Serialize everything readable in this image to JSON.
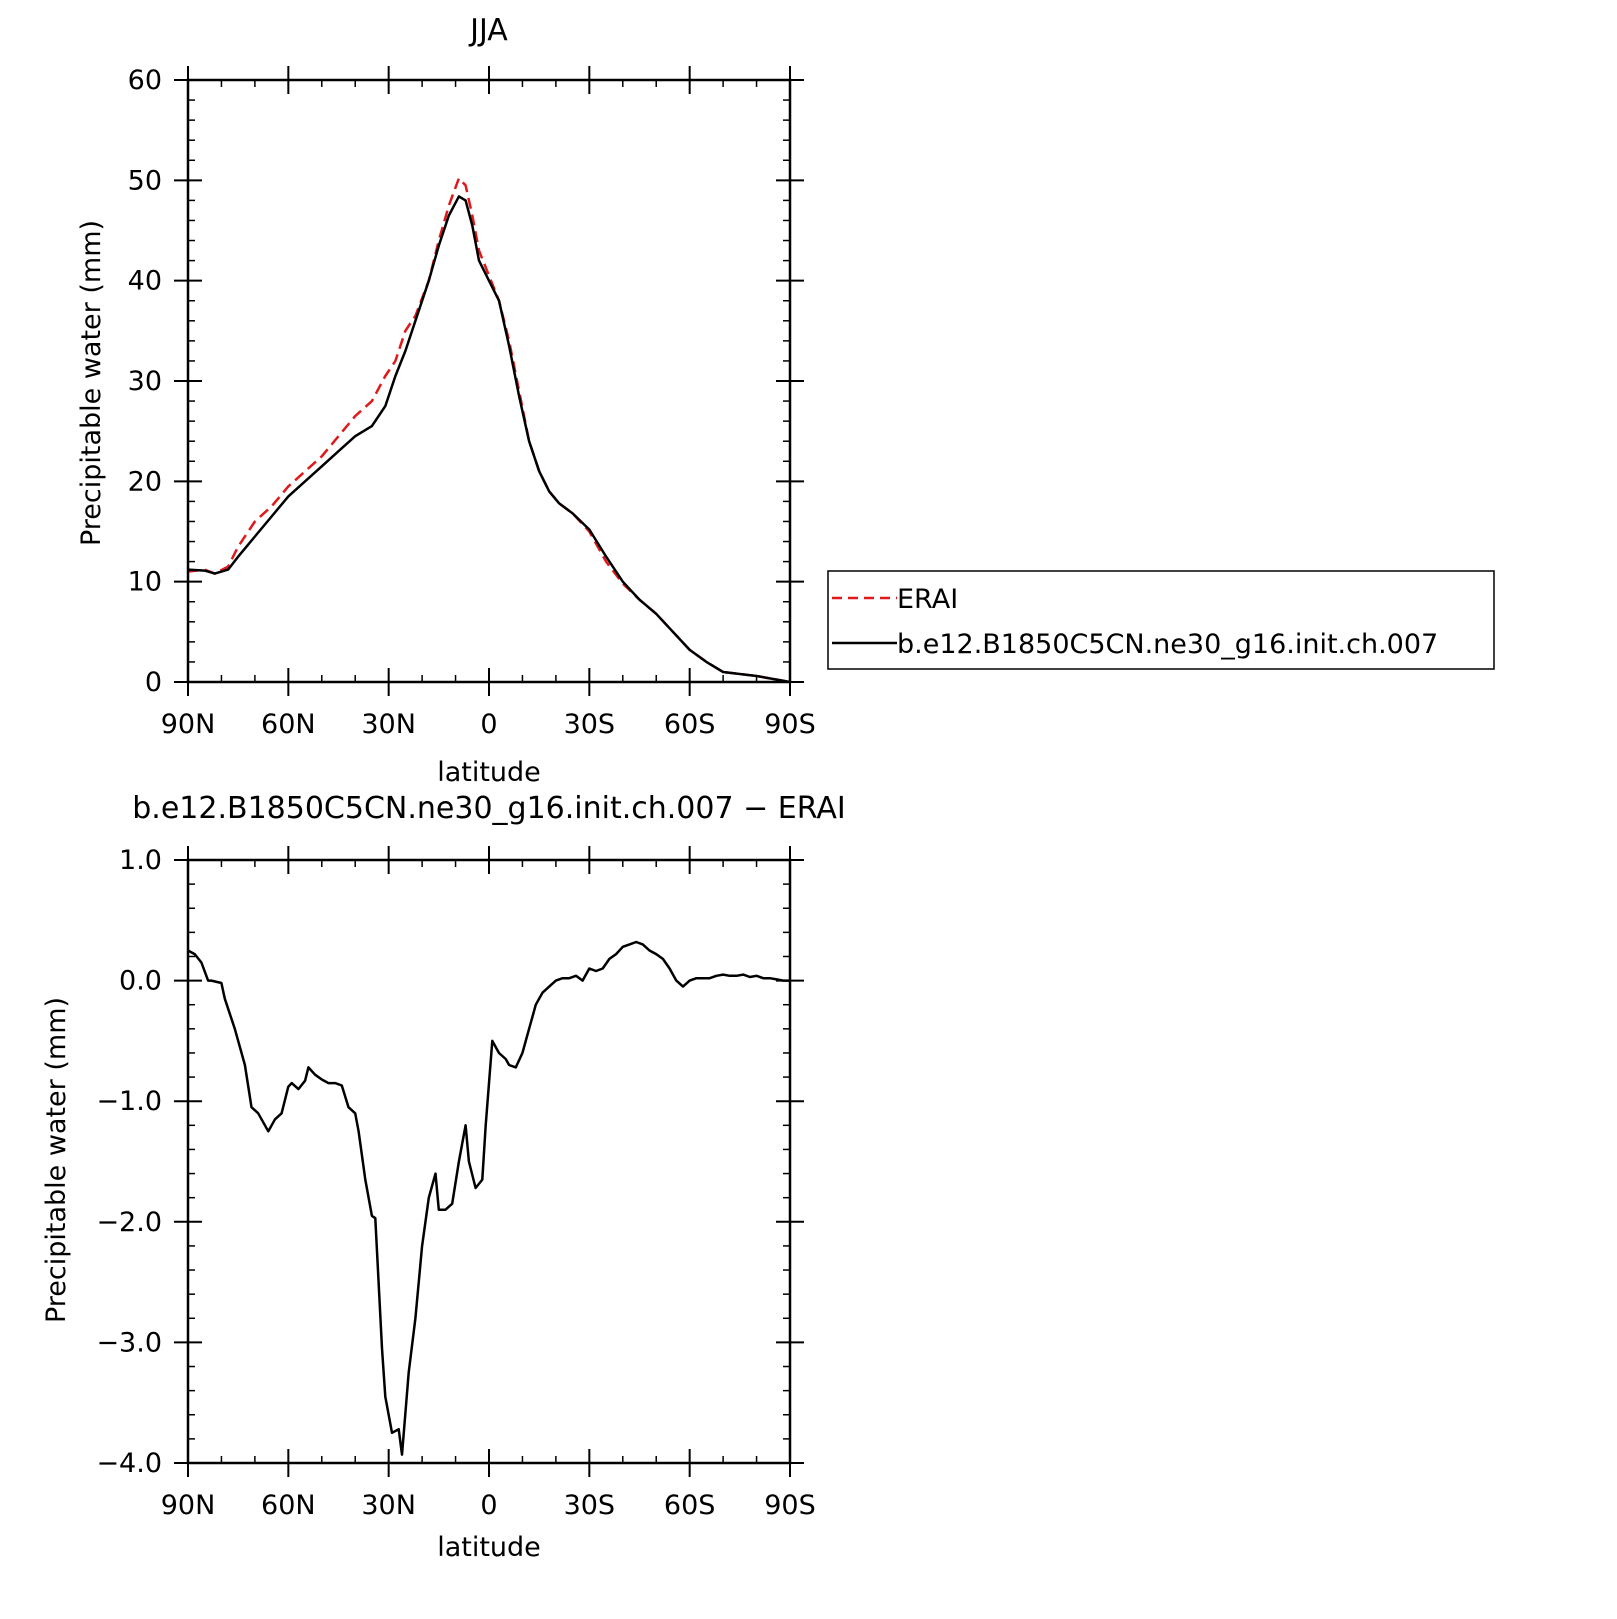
{
  "chart_data": [
    {
      "type": "line",
      "title": "JJA",
      "xlabel": "latitude",
      "ylabel": "Precipitable water (mm)",
      "xlim": [
        90,
        -90
      ],
      "ylim": [
        0,
        60
      ],
      "yticks": [
        0,
        10,
        20,
        30,
        40,
        50,
        60
      ],
      "ytick_labels": [
        "0",
        "10",
        "20",
        "30",
        "40",
        "50",
        "60"
      ],
      "xticks": [
        90,
        60,
        30,
        0,
        -30,
        -60,
        -90
      ],
      "xtick_labels": [
        "90N",
        "60N",
        "30N",
        "0",
        "30S",
        "60S",
        "90S"
      ],
      "grid": false,
      "legend": "right, outside plot",
      "series": [
        {
          "name": "ERAI",
          "color": "#e0191b",
          "dash": "dashed",
          "x": [
            90,
            85,
            82,
            78,
            75,
            70,
            65,
            60,
            55,
            50,
            45,
            40,
            35,
            31,
            28,
            25,
            22,
            18,
            15,
            12,
            9,
            7,
            5,
            3,
            0,
            -3,
            -6,
            -9,
            -12,
            -15,
            -18,
            -21,
            -25,
            -30,
            -35,
            -40,
            -45,
            -50,
            -55,
            -60,
            -65,
            -70,
            -75,
            -80,
            -85,
            -90
          ],
          "y": [
            11.0,
            11.2,
            10.8,
            11.5,
            13.5,
            16.0,
            17.5,
            19.5,
            21.0,
            22.5,
            24.5,
            26.5,
            28.0,
            30.5,
            32.0,
            35.0,
            36.5,
            40.0,
            44.0,
            47.5,
            50.2,
            49.5,
            46.5,
            43.0,
            40.5,
            38.0,
            34.0,
            29.0,
            24.0,
            21.0,
            19.0,
            17.8,
            16.8,
            15.0,
            12.0,
            9.8,
            8.2,
            6.8,
            5.0,
            3.2,
            2.0,
            1.0,
            0.8,
            0.6,
            0.3,
            0.0
          ]
        },
        {
          "name": "b.e12.B1850C5CN.ne30_g16.init.ch.007",
          "color": "#000000",
          "dash": "solid",
          "x": [
            90,
            85,
            82,
            78,
            75,
            70,
            65,
            60,
            55,
            50,
            45,
            40,
            35,
            31,
            28,
            25,
            22,
            18,
            15,
            12,
            9,
            7,
            5,
            3,
            0,
            -3,
            -6,
            -9,
            -12,
            -15,
            -18,
            -21,
            -25,
            -30,
            -35,
            -40,
            -45,
            -50,
            -55,
            -60,
            -65,
            -70,
            -75,
            -80,
            -85,
            -90
          ],
          "y": [
            11.2,
            11.1,
            10.8,
            11.2,
            12.5,
            14.5,
            16.5,
            18.5,
            20.0,
            21.5,
            23.0,
            24.5,
            25.5,
            27.5,
            30.5,
            33.0,
            36.0,
            40.0,
            43.5,
            46.5,
            48.4,
            48.0,
            45.5,
            42.0,
            40.0,
            38.0,
            33.5,
            28.5,
            24.0,
            21.0,
            19.0,
            17.8,
            16.8,
            15.2,
            12.5,
            10.0,
            8.2,
            6.8,
            5.0,
            3.2,
            2.0,
            1.0,
            0.8,
            0.6,
            0.3,
            0.0
          ]
        }
      ]
    },
    {
      "type": "line",
      "title": "b.e12.B1850C5CN.ne30_g16.init.ch.007 − ERAI",
      "xlabel": "latitude",
      "ylabel": "Precipitable water (mm)",
      "xlim": [
        90,
        -90
      ],
      "ylim": [
        -4.0,
        1.0
      ],
      "yticks": [
        -4.0,
        -3.0,
        -2.0,
        -1.0,
        0.0,
        1.0
      ],
      "ytick_labels": [
        "−4.0",
        "−3.0",
        "−2.0",
        "−1.0",
        "0.0",
        "1.0"
      ],
      "xticks": [
        90,
        60,
        30,
        0,
        -30,
        -60,
        -90
      ],
      "xtick_labels": [
        "90N",
        "60N",
        "30N",
        "0",
        "30S",
        "60S",
        "90S"
      ],
      "grid": false,
      "series": [
        {
          "color": "#000000",
          "dash": "solid",
          "x": [
            90,
            88,
            86,
            84,
            83,
            80,
            79,
            76,
            73,
            71,
            69,
            66,
            64,
            62,
            60,
            59,
            57,
            55,
            54,
            52,
            50,
            48,
            46,
            44,
            42,
            40,
            39,
            37,
            35,
            34,
            32,
            31,
            29,
            27,
            26,
            24,
            22,
            20,
            18,
            16,
            15,
            13,
            11,
            9,
            7,
            6,
            4,
            2,
            1,
            -1,
            -3,
            -5,
            -6,
            -8,
            -10,
            -12,
            -14,
            -16,
            -18,
            -20,
            -22,
            -24,
            -26,
            -28,
            -30,
            -32,
            -34,
            -36,
            -38,
            -40,
            -42,
            -44,
            -46,
            -48,
            -50,
            -52,
            -54,
            -56,
            -58,
            -60,
            -62,
            -64,
            -66,
            -68,
            -70,
            -72,
            -74,
            -76,
            -78,
            -80,
            -82,
            -84,
            -86,
            -88,
            -90
          ],
          "y": [
            0.25,
            0.22,
            0.15,
            0.0,
            0.0,
            -0.02,
            -0.15,
            -0.4,
            -0.7,
            -1.05,
            -1.1,
            -1.25,
            -1.15,
            -1.1,
            -0.88,
            -0.85,
            -0.9,
            -0.83,
            -0.72,
            -0.78,
            -0.82,
            -0.85,
            -0.85,
            -0.87,
            -1.05,
            -1.1,
            -1.25,
            -1.65,
            -1.95,
            -1.97,
            -3.05,
            -3.45,
            -3.75,
            -3.72,
            -3.93,
            -3.25,
            -2.8,
            -2.2,
            -1.8,
            -1.6,
            -1.9,
            -1.9,
            -1.85,
            -1.5,
            -1.2,
            -1.5,
            -1.72,
            -1.65,
            -1.2,
            -0.5,
            -0.6,
            -0.65,
            -0.7,
            -0.72,
            -0.6,
            -0.4,
            -0.2,
            -0.1,
            -0.05,
            0.0,
            0.02,
            0.02,
            0.04,
            0.0,
            0.1,
            0.08,
            0.1,
            0.18,
            0.22,
            0.28,
            0.3,
            0.32,
            0.3,
            0.25,
            0.22,
            0.18,
            0.1,
            0.0,
            -0.05,
            0.0,
            0.02,
            0.02,
            0.02,
            0.04,
            0.05,
            0.04,
            0.04,
            0.05,
            0.03,
            0.04,
            0.02,
            0.02,
            0.01,
            0.0,
            0.0
          ]
        }
      ]
    }
  ]
}
